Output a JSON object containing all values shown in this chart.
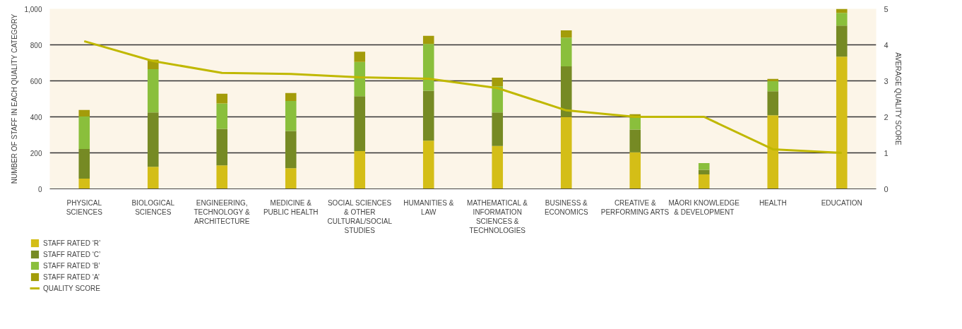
{
  "chart_data": {
    "type": "bar",
    "stacked": true,
    "categories": [
      "PHYSICAL SCIENCES",
      "BIOLOGICAL SCIENCES",
      "ENGINEERING, TECHNOLOGY & ARCHITECTURE",
      "MEDICINE & PUBLIC HEALTH",
      "SOCIAL SCIENCES & OTHER CULTURAL/SOCIAL STUDIES",
      "HUMANITIES & LAW",
      "MATHEMATICAL & INFORMATION SCIENCES & TECHNOLOGIES",
      "BUSINESS & ECONOMICS",
      "CREATIVE & PERFORMING ARTS",
      "MĀORI KNOWLEDGE & DEVELOPMENT",
      "HEALTH",
      "EDUCATION"
    ],
    "ylabel": "NUMBER OF STAFF IN EACH QUALITY CATEGORY",
    "y2label": "AVERAGE QUALITY SCORE",
    "ylim": [
      0,
      1000
    ],
    "yticks": [
      0,
      200,
      400,
      600,
      800,
      {
        "value": 1000,
        "label": "1,000"
      }
    ],
    "y2lim": [
      0,
      5
    ],
    "y2ticks": [
      0,
      1,
      2,
      3,
      4,
      5
    ],
    "grid": "y",
    "legend": "bottom left",
    "series": [
      {
        "name": "STAFF RATED ‘R’",
        "color": "#d4be17",
        "values": [
          57,
          123,
          130,
          115,
          210,
          268,
          238,
          400,
          203,
          80,
          409,
          734
        ]
      },
      {
        "name": "STAFF RATED ‘C’",
        "color": "#768a24",
        "values": [
          165,
          302,
          203,
          207,
          305,
          277,
          187,
          280,
          126,
          26,
          133,
          173
        ]
      },
      {
        "name": "STAFF RATED ‘B’",
        "color": "#8abf3c",
        "values": [
          180,
          240,
          142,
          166,
          190,
          260,
          145,
          160,
          66,
          37,
          56,
          70
        ]
      },
      {
        "name": "STAFF RATED ‘A’",
        "color": "#a39c0a",
        "values": [
          36,
          53,
          53,
          44,
          57,
          45,
          48,
          40,
          20,
          0,
          13,
          23
        ]
      },
      {
        "name": "QUALITY SCORE",
        "type": "line",
        "axis": "y2",
        "color": "#c0b800",
        "values": [
          4.1,
          3.55,
          3.22,
          3.19,
          3.1,
          3.06,
          2.8,
          2.18,
          2.0,
          2.0,
          1.1,
          1.0
        ]
      }
    ]
  }
}
